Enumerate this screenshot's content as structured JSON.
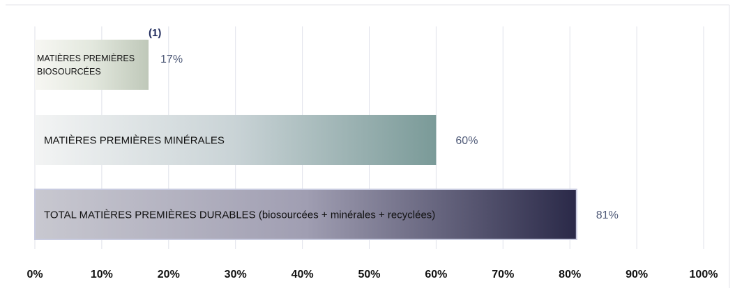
{
  "chart_data": {
    "type": "bar",
    "orientation": "horizontal",
    "categories": [
      [
        "MATIÈRES PREMIÈRES",
        "BIOSOURCÉES"
      ],
      [
        "MATIÈRES PREMIÈRES MINÉRALES"
      ],
      [
        "TOTAL MATIÈRES PREMIÈRES DURABLES (biosourcées + minérales + recyclées)"
      ]
    ],
    "values": [
      17,
      60,
      81
    ],
    "value_labels": [
      "17%",
      "60%",
      "81%"
    ],
    "annotation": "(1)",
    "xlim": [
      0,
      100
    ],
    "x_ticks": [
      0,
      10,
      20,
      30,
      40,
      50,
      60,
      70,
      80,
      90,
      100
    ],
    "x_tick_labels": [
      "0%",
      "10%",
      "20%",
      "30%",
      "40%",
      "50%",
      "60%",
      "70%",
      "80%",
      "90%",
      "100%"
    ],
    "grid": "vertical",
    "legend": "none",
    "bar_colors": [
      [
        "#f7f7f3",
        "#e3e8de",
        "#bfc8b9"
      ],
      [
        "#f3f4f4",
        "#c9d3d6",
        "#7a9a98"
      ],
      [
        "#c8c8d0",
        "#a09eb2",
        "#2a2948"
      ]
    ]
  }
}
